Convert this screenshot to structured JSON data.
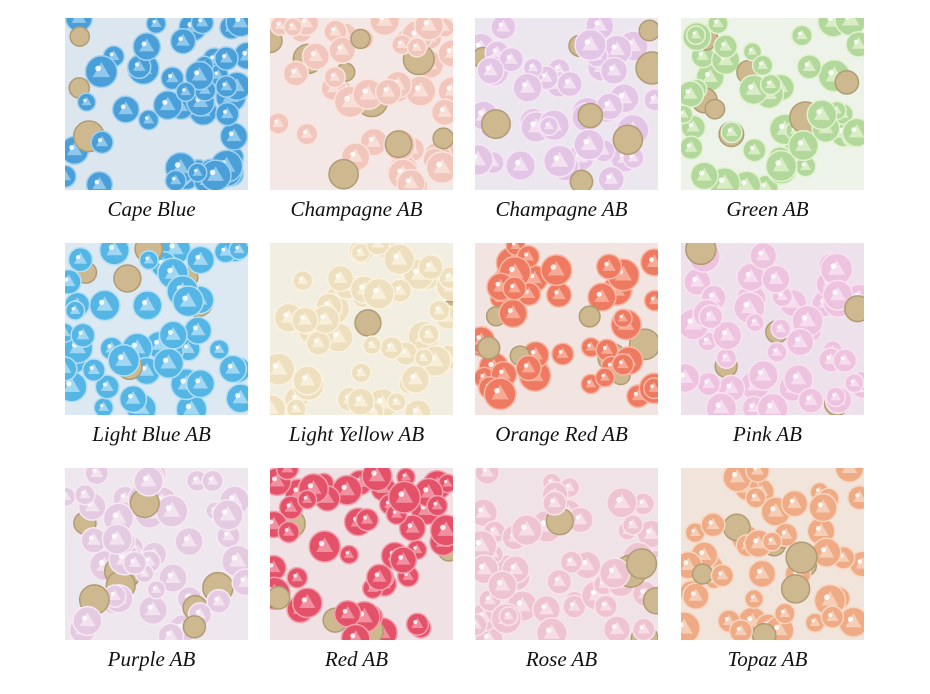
{
  "items": [
    {
      "label": "Cape Blue"
    },
    {
      "label": "Champagne AB"
    },
    {
      "label": "Champagne AB"
    },
    {
      "label": "Green AB"
    },
    {
      "label": "Light Blue AB"
    },
    {
      "label": "Light Yellow AB"
    },
    {
      "label": "Orange Red AB"
    },
    {
      "label": "Pink AB"
    },
    {
      "label": "Purple AB"
    },
    {
      "label": "Red AB"
    },
    {
      "label": "Rose AB"
    },
    {
      "label": "Topaz AB"
    }
  ]
}
